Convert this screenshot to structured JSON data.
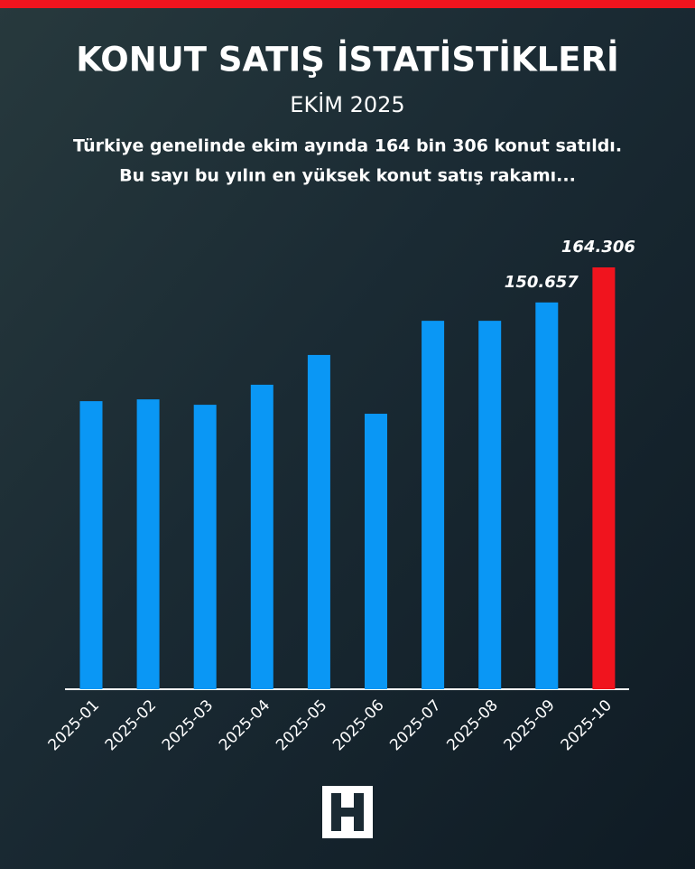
{
  "chart_data": {
    "type": "bar",
    "title": "KONUT SATIŞ İSTATİSTİKLERİ",
    "subtitle": "EKİM 2025",
    "description": [
      "Türkiye genelinde ekim ayında 164 bin 306 konut satıldı.",
      "Bu sayı bu yılın en yüksek konut satış rakamı..."
    ],
    "categories": [
      "2025-01",
      "2025-02",
      "2025-03",
      "2025-04",
      "2025-05",
      "2025-06",
      "2025-07",
      "2025-08",
      "2025-09",
      "2025-10"
    ],
    "values": [
      112200,
      112900,
      110800,
      118600,
      130200,
      107300,
      143500,
      143500,
      150657,
      164306
    ],
    "value_labels": [
      null,
      null,
      null,
      null,
      null,
      null,
      null,
      null,
      "150.657",
      "164.306"
    ],
    "colors": [
      "#0a97f5",
      "#0a97f5",
      "#0a97f5",
      "#0a97f5",
      "#0a97f5",
      "#0a97f5",
      "#0a97f5",
      "#0a97f5",
      "#0a97f5",
      "#f0141e"
    ]
  }
}
